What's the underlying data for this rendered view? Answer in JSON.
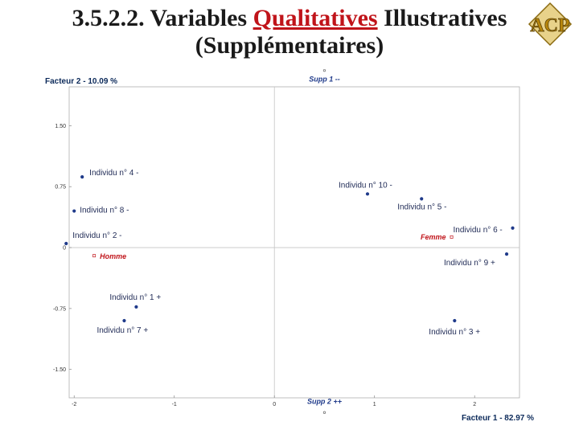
{
  "slide": {
    "title_prefix": "3.5.2.2. Variables ",
    "title_highlight": "Qualitatives",
    "title_suffix": " Illustratives",
    "title_line2": "(Supplémentaires)",
    "logo_text": "ACP",
    "logo_color": "#b8860b"
  },
  "chart_data": {
    "type": "scatter",
    "xlabel": "Facteur 1  -  82.97 %",
    "ylabel": "Facteur 2  -  10.09 %",
    "xlim": [
      -2.05,
      2.4
    ],
    "ylim": [
      -1.8,
      1.88
    ],
    "x_ticks": [
      {
        "value": -2,
        "label": "-2"
      },
      {
        "value": -1,
        "label": "-1"
      },
      {
        "value": 0,
        "label": "0"
      },
      {
        "value": 1,
        "label": "1"
      },
      {
        "value": 2,
        "label": "2"
      }
    ],
    "y_ticks": [
      {
        "value": 1.5,
        "label": "1.50"
      },
      {
        "value": 0.75,
        "label": "0.75"
      },
      {
        "value": 0,
        "label": "0"
      },
      {
        "value": -0.75,
        "label": "-0.75"
      },
      {
        "value": -1.5,
        "label": "-1.50"
      }
    ],
    "grid": false,
    "series": [
      {
        "color": "#1f3a8a",
        "points": [
          {
            "label": "Individu n° 1 +",
            "x": -1.38,
            "y": -0.73
          },
          {
            "label": "Individu n° 2 -",
            "x": -2.08,
            "y": 0.05
          },
          {
            "label": "Individu n° 3 +",
            "x": 1.8,
            "y": -0.9
          },
          {
            "label": "Individu n° 4 -",
            "x": -1.92,
            "y": 0.87
          },
          {
            "label": "Individu n° 5 -",
            "x": 1.47,
            "y": 0.6
          },
          {
            "label": "Individu n° 6 -",
            "x": 2.38,
            "y": 0.24
          },
          {
            "label": "Individu n° 7 +",
            "x": -1.5,
            "y": -0.9
          },
          {
            "label": "Individu n° 8 -",
            "x": -2.0,
            "y": 0.45
          },
          {
            "label": "Individu n° 9 +",
            "x": 2.32,
            "y": -0.08
          },
          {
            "label": "Individu n° 10 -",
            "x": 0.93,
            "y": 0.66
          }
        ]
      },
      {
        "color": "#1f3a8a",
        "points": [
          {
            "label": "Supp 1 --",
            "x": 0.5,
            "y": 2.18
          },
          {
            "label": "Supp 2 ++",
            "x": 0.5,
            "y": -2.03
          }
        ]
      },
      {
        "color": "#c0141a",
        "points": [
          {
            "label": "Homme",
            "x": -1.8,
            "y": -0.1
          },
          {
            "label": "Femme",
            "x": 1.77,
            "y": 0.13
          }
        ]
      }
    ]
  }
}
